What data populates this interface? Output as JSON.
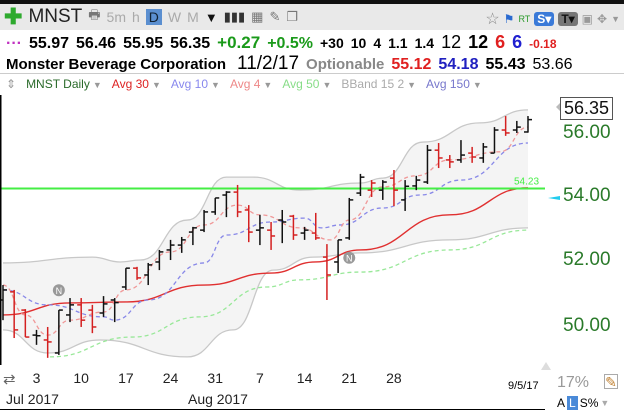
{
  "toolbar": {
    "symbol": "MNST",
    "intervals": [
      "5m",
      "h",
      "D",
      "W",
      "M"
    ],
    "selected": "D",
    "rt": "RT",
    "s_btn": "S▾",
    "t_btn": "T▾"
  },
  "quote": {
    "open": "55.97",
    "high": "56.46",
    "low": "55.95",
    "last": "56.35",
    "change": "+0.27",
    "pct": "+0.5%",
    "f1": "+30",
    "f2": "10",
    "f3": "4",
    "f4": "1.1",
    "f5": "1.4",
    "f6": "12",
    "f7": "12",
    "f8": "6",
    "f9": "6",
    "f10": "-0.18"
  },
  "company": {
    "name": "Monster Beverage Corporation",
    "date": "11/2/17",
    "optionable": "Optionable",
    "v1": "55.12",
    "v2": "54.18",
    "v3": "55.43",
    "v4": "53.66"
  },
  "legend": [
    {
      "label": "MNST Daily",
      "color": "#2a6a2a"
    },
    {
      "label": "Avg 30",
      "color": "#d22"
    },
    {
      "label": "Avg 10",
      "color": "#88e"
    },
    {
      "label": "Avg 4",
      "color": "#e88"
    },
    {
      "label": "Avg 50",
      "color": "#8d8"
    },
    {
      "label": "BBand 15 2",
      "color": "#aaa"
    },
    {
      "label": "Avg 150",
      "color": "#77c"
    }
  ],
  "axis": {
    "labels": [
      "56.00",
      "54.00",
      "52.00",
      "50.00"
    ],
    "values": [
      56,
      54,
      52,
      50
    ],
    "last_price": "56.35"
  },
  "hline": {
    "value": 54.23,
    "label": "54.23",
    "color": "#44ee44"
  },
  "x_ticks": [
    {
      "i": 3,
      "label": "3"
    },
    {
      "i": 7,
      "label": "10"
    },
    {
      "i": 11,
      "label": "17"
    },
    {
      "i": 15,
      "label": "24"
    },
    {
      "i": 19,
      "label": "31"
    },
    {
      "i": 23,
      "label": "7"
    },
    {
      "i": 27,
      "label": "14"
    },
    {
      "i": 31,
      "label": "21"
    },
    {
      "i": 35,
      "label": "28"
    }
  ],
  "months": {
    "jul": "Jul 2017",
    "aug": "Aug 2017"
  },
  "footer": {
    "date": "9/5/17",
    "zoom": "17%",
    "a": "A",
    "l": "L",
    "s": "S%"
  },
  "news_markers": [
    {
      "i": 5,
      "p": 51.1
    },
    {
      "i": 31,
      "p": 52.1
    }
  ],
  "ohlc": [
    [
      50.8,
      51.26,
      50.18,
      51.11
    ],
    [
      51.05,
      51.11,
      49.63,
      49.88
    ],
    [
      50.49,
      50.52,
      49.66,
      49.66
    ],
    [
      49.72,
      49.88,
      49.42,
      49.7
    ],
    [
      49.57,
      49.97,
      49.02,
      49.51
    ],
    [
      49.17,
      50.49,
      49.11,
      50.49
    ],
    [
      50.34,
      50.86,
      50.12,
      50.65
    ],
    [
      50.65,
      50.86,
      49.97,
      50.18
    ],
    [
      50.49,
      50.65,
      49.78,
      49.97
    ],
    [
      50.4,
      50.92,
      50.28,
      50.68
    ],
    [
      50.8,
      50.86,
      50.12,
      50.72
    ],
    [
      51.2,
      51.78,
      51.11,
      51.78
    ],
    [
      51.78,
      51.82,
      51.42,
      51.48
    ],
    [
      51.57,
      51.94,
      51.26,
      51.88
    ],
    [
      51.97,
      52.34,
      51.72,
      52.28
    ],
    [
      52.34,
      52.65,
      52.03,
      52.49
    ],
    [
      52.49,
      52.74,
      52.25,
      52.65
    ],
    [
      52.89,
      53.05,
      52.49,
      53.02
    ],
    [
      52.95,
      53.57,
      52.89,
      53.51
    ],
    [
      53.51,
      53.94,
      53.42,
      53.94
    ],
    [
      54.03,
      54.15,
      53.35,
      54.12
    ],
    [
      54.12,
      54.34,
      53.35,
      53.51
    ],
    [
      53.57,
      53.72,
      52.58,
      52.89
    ],
    [
      52.95,
      53.42,
      52.49,
      53.02
    ],
    [
      52.95,
      53.2,
      52.34,
      52.77
    ],
    [
      53.26,
      53.57,
      52.55,
      53.2
    ],
    [
      53.38,
      53.42,
      52.65,
      52.8
    ],
    [
      52.86,
      53.05,
      52.65,
      52.95
    ],
    [
      52.86,
      53.48,
      52.65,
      52.71
    ],
    [
      52.12,
      52.52,
      50.8,
      51.57
    ],
    [
      51.97,
      52.65,
      51.63,
      52.65
    ],
    [
      52.71,
      53.94,
      52.65,
      53.88
    ],
    [
      54.09,
      54.68,
      54.0,
      54.58
    ],
    [
      54.18,
      54.49,
      53.97,
      54.4
    ],
    [
      54.18,
      54.49,
      53.88,
      54.43
    ],
    [
      54.55,
      54.8,
      53.69,
      54.18
    ],
    [
      53.88,
      54.49,
      53.54,
      54.3
    ],
    [
      54.31,
      54.62,
      54.18,
      54.49
    ],
    [
      54.43,
      55.57,
      54.37,
      55.41
    ],
    [
      55.41,
      55.63,
      54.86,
      55.17
    ],
    [
      55.11,
      55.26,
      54.86,
      55.05
    ],
    [
      55.11,
      55.72,
      55.02,
      55.26
    ],
    [
      55.32,
      55.51,
      55.02,
      55.2
    ],
    [
      55.17,
      55.63,
      55.02,
      55.51
    ],
    [
      55.32,
      56.12,
      55.32,
      56.03
    ],
    [
      56.03,
      56.46,
      55.85,
      55.94
    ],
    [
      56.03,
      56.31,
      55.94,
      56.12
    ],
    [
      55.97,
      56.46,
      55.95,
      56.35
    ]
  ],
  "ma": {
    "avg30": [
      [
        0,
        50.34
      ],
      [
        6,
        50.71
      ],
      [
        11,
        50.74
      ],
      [
        18,
        51.26
      ],
      [
        24,
        51.63
      ],
      [
        28,
        51.97
      ],
      [
        32,
        52.34
      ],
      [
        40,
        53.42
      ],
      [
        47,
        54.25
      ]
    ],
    "avg10": [
      [
        0,
        51.11
      ],
      [
        4,
        50.65
      ],
      [
        9,
        50.28
      ],
      [
        10,
        50.18
      ],
      [
        13,
        50.8
      ],
      [
        18,
        51.94
      ],
      [
        20,
        52.8
      ],
      [
        24,
        53.2
      ],
      [
        27,
        53.32
      ],
      [
        28.5,
        53.02
      ],
      [
        30.2,
        53.11
      ],
      [
        34,
        53.63
      ],
      [
        37.3,
        54.03
      ],
      [
        41,
        54.49
      ],
      [
        47,
        55.63
      ]
    ],
    "avg4": [
      [
        0,
        51.26
      ],
      [
        2,
        50.34
      ],
      [
        4,
        49.72
      ],
      [
        6,
        50.18
      ],
      [
        9,
        50.43
      ],
      [
        11,
        51.11
      ],
      [
        15,
        52.28
      ],
      [
        18,
        53.11
      ],
      [
        21,
        53.72
      ],
      [
        23,
        53.42
      ],
      [
        26.6,
        53.02
      ],
      [
        29.3,
        52.65
      ],
      [
        31,
        53.26
      ],
      [
        34,
        54.28
      ],
      [
        37,
        54.62
      ],
      [
        40,
        55.11
      ],
      [
        44.5,
        55.36
      ],
      [
        47,
        56.12
      ]
    ],
    "avg50": [
      [
        4.2,
        49.05
      ],
      [
        11.6,
        49.66
      ],
      [
        17.6,
        50.28
      ],
      [
        23.6,
        51.2
      ],
      [
        26.6,
        51.42
      ],
      [
        32,
        51.66
      ],
      [
        40,
        52.34
      ],
      [
        47,
        52.95
      ]
    ],
    "bb_upper": [
      [
        0,
        51.94
      ],
      [
        8,
        52.12
      ],
      [
        10.5,
        51.97
      ],
      [
        12.3,
        52.03
      ],
      [
        16.5,
        53.26
      ],
      [
        20,
        54.58
      ],
      [
        22.4,
        54.58
      ],
      [
        26.6,
        54.18
      ],
      [
        32,
        54.4
      ],
      [
        34,
        54.55
      ],
      [
        37.6,
        55.66
      ],
      [
        42.7,
        56.25
      ],
      [
        47,
        56.65
      ]
    ],
    "bb_lower": [
      [
        0,
        49.88
      ],
      [
        4,
        49.17
      ],
      [
        8.7,
        49.57
      ],
      [
        16.5,
        49.05
      ],
      [
        20.6,
        49.88
      ],
      [
        24.2,
        51.72
      ],
      [
        27.8,
        52.12
      ],
      [
        32,
        52.25
      ],
      [
        40,
        52.65
      ],
      [
        47,
        53.02
      ]
    ]
  },
  "colors": {
    "up": "#111111",
    "down": "#d42020",
    "avg30": "#e03030",
    "avg10": "#8888e8",
    "avg4": "#f09898",
    "avg50": "#99e899",
    "bband": "#c8c8c8",
    "axis": "#2a7a2a",
    "cyan": "#22ccee"
  }
}
